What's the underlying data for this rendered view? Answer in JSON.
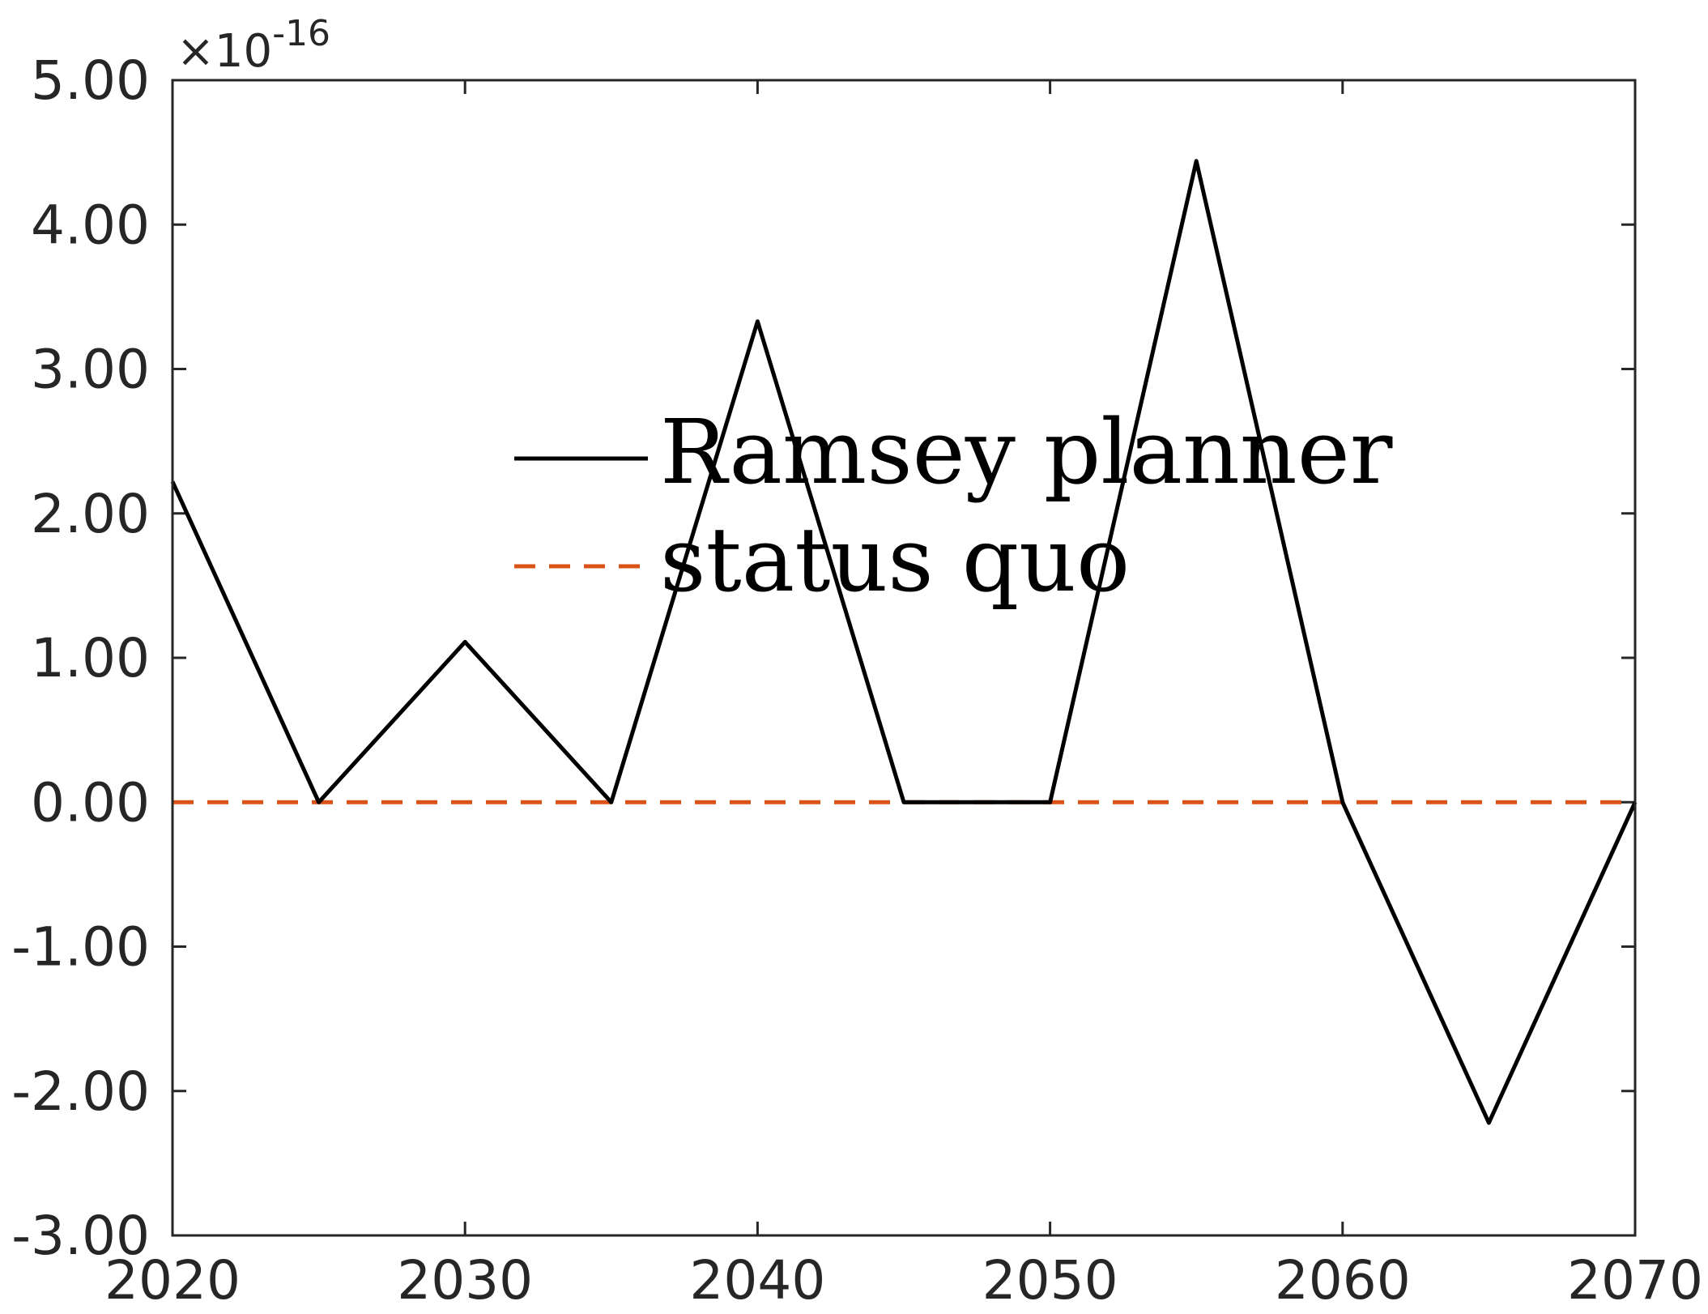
{
  "chart_data": {
    "type": "line",
    "title": "",
    "xlabel": "",
    "ylabel": "",
    "y_exponent_label": "×10",
    "y_exponent_power": "-16",
    "xlim": [
      2020,
      2070
    ],
    "ylim": [
      -3.0,
      5.0
    ],
    "x_ticks": [
      2020,
      2030,
      2040,
      2050,
      2060,
      2070
    ],
    "x_tick_labels": [
      "2020",
      "2030",
      "2040",
      "2050",
      "2060",
      "2070"
    ],
    "y_ticks": [
      5,
      4,
      3,
      2,
      1,
      0,
      -1,
      -2,
      -3
    ],
    "y_tick_labels": [
      "5.00",
      "4.00",
      "3.00",
      "2.00",
      "1.00",
      "0.00",
      "-1.00",
      "-2.00",
      "-3.00"
    ],
    "grid": false,
    "legend_position": "center",
    "series": [
      {
        "name": "Ramsey planner",
        "color": "#000000",
        "dash": "solid",
        "x": [
          2020,
          2025,
          2030,
          2035,
          2040,
          2045,
          2050,
          2055,
          2060,
          2065,
          2070
        ],
        "y": [
          2.22,
          0.0,
          1.11,
          0.0,
          3.33,
          0.0,
          0.0,
          4.44,
          0.0,
          -2.22,
          0.0
        ]
      },
      {
        "name": "status quo",
        "color": "#D95319",
        "dash": "dashed",
        "x": [
          2020,
          2070
        ],
        "y": [
          0.0,
          0.0
        ]
      }
    ]
  }
}
